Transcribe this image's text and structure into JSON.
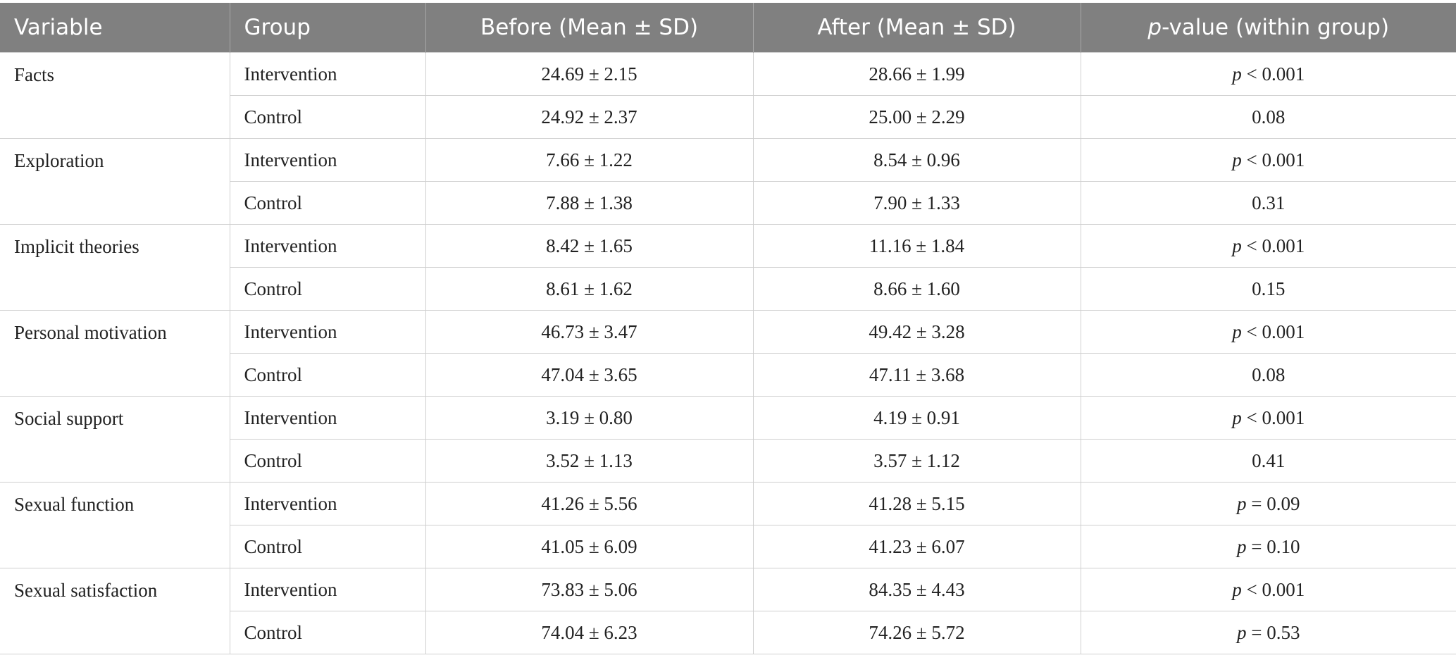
{
  "table": {
    "columns": [
      "Variable",
      "Group",
      "Before (Mean ± SD)",
      "After (Mean ± SD)",
      "p-value (within group)"
    ],
    "rows": [
      {
        "variable": "Facts",
        "groups": [
          {
            "group": "Intervention",
            "before": "24.69 ± 2.15",
            "after": "28.66 ± 1.99",
            "p": "p < 0.001"
          },
          {
            "group": "Control",
            "before": "24.92 ± 2.37",
            "after": "25.00 ± 2.29",
            "p": "0.08"
          }
        ]
      },
      {
        "variable": "Exploration",
        "groups": [
          {
            "group": "Intervention",
            "before": "7.66 ± 1.22",
            "after": "8.54 ± 0.96",
            "p": "p < 0.001"
          },
          {
            "group": "Control",
            "before": "7.88 ± 1.38",
            "after": "7.90 ± 1.33",
            "p": "0.31"
          }
        ]
      },
      {
        "variable": "Implicit theories",
        "groups": [
          {
            "group": "Intervention",
            "before": "8.42 ± 1.65",
            "after": "11.16 ± 1.84",
            "p": "p < 0.001"
          },
          {
            "group": "Control",
            "before": "8.61 ± 1.62",
            "after": "8.66 ± 1.60",
            "p": "0.15"
          }
        ]
      },
      {
        "variable": "Personal motivation",
        "groups": [
          {
            "group": "Intervention",
            "before": "46.73 ± 3.47",
            "after": "49.42 ± 3.28",
            "p": "p < 0.001"
          },
          {
            "group": "Control",
            "before": "47.04 ± 3.65",
            "after": "47.11 ± 3.68",
            "p": "0.08"
          }
        ]
      },
      {
        "variable": "Social support",
        "groups": [
          {
            "group": "Intervention",
            "before": "3.19 ± 0.80",
            "after": "4.19 ± 0.91",
            "p": "p < 0.001"
          },
          {
            "group": "Control",
            "before": "3.52 ± 1.13",
            "after": "3.57 ± 1.12",
            "p": "0.41"
          }
        ]
      },
      {
        "variable": "Sexual function",
        "groups": [
          {
            "group": "Intervention",
            "before": "41.26 ± 5.56",
            "after": "41.28 ± 5.15",
            "p": "p = 0.09"
          },
          {
            "group": "Control",
            "before": "41.05 ± 6.09",
            "after": "41.23 ± 6.07",
            "p": "p = 0.10"
          }
        ]
      },
      {
        "variable": "Sexual satisfaction",
        "groups": [
          {
            "group": "Intervention",
            "before": "73.83 ± 5.06",
            "after": "84.35 ± 4.43",
            "p": "p < 0.001"
          },
          {
            "group": "Control",
            "before": "74.04 ± 6.23",
            "after": "74.26 ± 5.72",
            "p": "p = 0.53"
          }
        ]
      }
    ]
  }
}
